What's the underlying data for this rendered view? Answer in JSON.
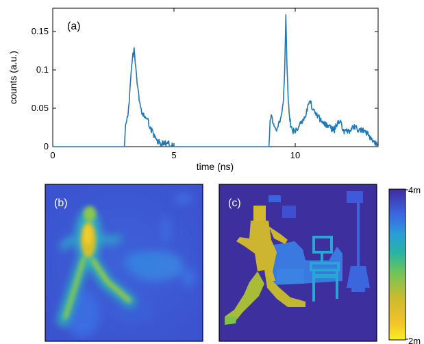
{
  "chart_data": [
    {
      "type": "line",
      "panel_label": "(a)",
      "xlabel": "time (ns)",
      "ylabel": "counts (a.u.)",
      "xlim": [
        0,
        13.4
      ],
      "ylim": [
        0,
        0.18
      ],
      "x_ticks": [
        "0",
        "5",
        "10"
      ],
      "y_ticks": [
        "0",
        "0.05",
        "0.1",
        "0.15"
      ],
      "line_color": "#1f77b4",
      "grid": false,
      "series": [
        {
          "x": [
            0,
            1,
            2,
            2.95,
            3.0,
            3.05,
            3.1,
            3.15,
            3.2,
            3.25,
            3.3,
            3.35,
            3.4,
            3.45,
            3.5,
            3.6,
            3.7,
            3.8,
            3.9,
            4.0,
            4.1,
            4.2,
            4.3,
            4.4,
            4.5,
            4.6,
            4.7,
            4.8,
            4.9,
            5.0,
            5.1,
            5.2,
            6,
            7,
            8,
            8.9,
            8.95,
            9.0,
            9.1,
            9.2,
            9.3,
            9.4,
            9.5,
            9.55,
            9.6,
            9.65,
            9.7,
            9.75,
            9.8,
            9.9,
            10.0,
            10.1,
            10.2,
            10.3,
            10.4,
            10.5,
            10.6,
            10.7,
            10.8,
            10.9,
            11.0,
            11.2,
            11.4,
            11.6,
            11.8,
            12.0,
            12.2,
            12.4,
            12.6,
            12.8,
            13.0,
            13.2,
            13.4
          ],
          "y": [
            0,
            0,
            0,
            0.0,
            0.03,
            0.035,
            0.04,
            0.06,
            0.085,
            0.105,
            0.118,
            0.126,
            0.11,
            0.09,
            0.075,
            0.055,
            0.04,
            0.04,
            0.035,
            0.025,
            0.02,
            0.012,
            0.008,
            0.005,
            0.004,
            0.005,
            0.004,
            0.003,
            0.002,
            0.0,
            0.0,
            0.0,
            0,
            0,
            0,
            0.0,
            0.03,
            0.038,
            0.03,
            0.02,
            0.03,
            0.035,
            0.06,
            0.1,
            0.17,
            0.1,
            0.06,
            0.04,
            0.028,
            0.02,
            0.02,
            0.025,
            0.03,
            0.035,
            0.04,
            0.05,
            0.06,
            0.05,
            0.045,
            0.04,
            0.035,
            0.03,
            0.025,
            0.022,
            0.035,
            0.02,
            0.02,
            0.025,
            0.022,
            0.02,
            0.015,
            0.008,
            0.0
          ]
        }
      ]
    },
    {
      "type": "heatmap",
      "panel_label": "(b)"
    },
    {
      "type": "heatmap",
      "panel_label": "(c)",
      "colorbar": {
        "max_label": "4m",
        "min_label": "2m",
        "colors": [
          "#3e2b9e",
          "#3b5bdc",
          "#2aa6d6",
          "#27b89a",
          "#7fc24b",
          "#d9ba2a",
          "#f5e528"
        ]
      }
    }
  ]
}
